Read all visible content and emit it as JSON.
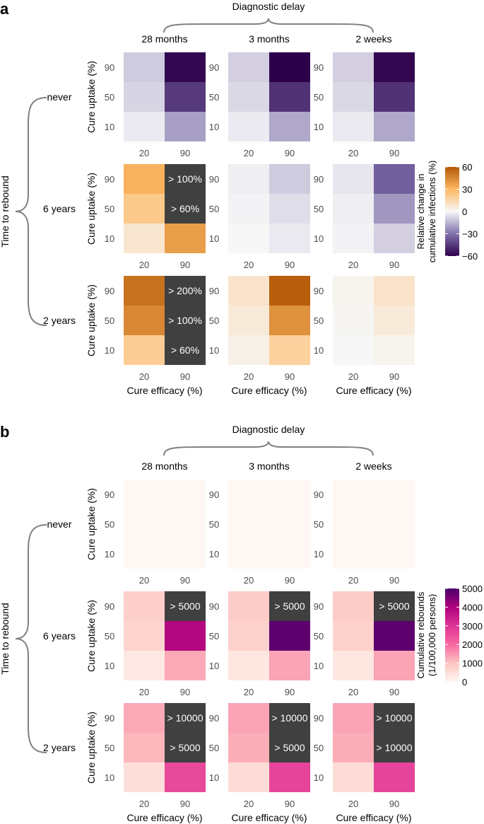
{
  "chart_data": [
    {
      "type": "heatmap",
      "panel": "a",
      "title": "Diagnostic delay",
      "row_facet_title": "Time to rebound",
      "column_facets": [
        "28 months",
        "3 months",
        "2 weeks"
      ],
      "row_facets": [
        "never",
        "6 years",
        "2 years"
      ],
      "xlabel": "Cure efficacy (%)",
      "ylabel": "Cure uptake (%)",
      "x_categories": [
        "20",
        "90"
      ],
      "y_categories": [
        "90",
        "50",
        "10"
      ],
      "legend": {
        "title_lines": [
          "Relative change in",
          "cumulative infections (%)"
        ],
        "ticks": [
          "60",
          "30",
          "0",
          "−30",
          "−60"
        ],
        "range": [
          -60,
          60
        ],
        "scale": "diverging orange-white-purple"
      },
      "color_stops": [
        {
          "value": -60,
          "color": "#2d004b"
        },
        {
          "value": -30,
          "color": "#8073ac"
        },
        {
          "value": 0,
          "color": "#f7f7f7"
        },
        {
          "value": 30,
          "color": "#fdb863"
        },
        {
          "value": 60,
          "color": "#b35806"
        }
      ],
      "overflow_color": "#404040",
      "facets": [
        {
          "row": 0,
          "col": 0,
          "values": [
            [
              -10,
              -58
            ],
            [
              -8,
              -45
            ],
            [
              -3,
              -20
            ]
          ],
          "labels": [
            [
              "",
              ""
            ],
            [
              "",
              ""
            ],
            [
              "",
              ""
            ]
          ]
        },
        {
          "row": 0,
          "col": 1,
          "values": [
            [
              -9,
              -60
            ],
            [
              -7,
              -47
            ],
            [
              -3,
              -18
            ]
          ],
          "labels": [
            [
              "",
              ""
            ],
            [
              "",
              ""
            ],
            [
              "",
              ""
            ]
          ]
        },
        {
          "row": 0,
          "col": 2,
          "values": [
            [
              -9,
              -58
            ],
            [
              -7,
              -47
            ],
            [
              -3,
              -18
            ]
          ],
          "labels": [
            [
              "",
              ""
            ],
            [
              "",
              ""
            ],
            [
              "",
              ""
            ]
          ]
        },
        {
          "row": 1,
          "col": 0,
          "values": [
            [
              32,
              null
            ],
            [
              22,
              null
            ],
            [
              8,
              38
            ]
          ],
          "labels": [
            [
              "",
              "> 100%"
            ],
            [
              "",
              "> 60%"
            ],
            [
              "",
              ""
            ]
          ]
        },
        {
          "row": 1,
          "col": 1,
          "values": [
            [
              -2,
              -10
            ],
            [
              -1,
              -6
            ],
            [
              0,
              -3
            ]
          ],
          "labels": [
            [
              "",
              ""
            ],
            [
              "",
              ""
            ],
            [
              "",
              ""
            ]
          ]
        },
        {
          "row": 1,
          "col": 2,
          "values": [
            [
              -4,
              -35
            ],
            [
              -2,
              -22
            ],
            [
              -1,
              -9
            ]
          ],
          "labels": [
            [
              "",
              ""
            ],
            [
              "",
              ""
            ],
            [
              "",
              ""
            ]
          ]
        },
        {
          "row": 2,
          "col": 0,
          "values": [
            [
              52,
              null
            ],
            [
              45,
              null
            ],
            [
              20,
              null
            ]
          ],
          "labels": [
            [
              "",
              "> 200%"
            ],
            [
              "",
              "> 100%"
            ],
            [
              "",
              "> 60%"
            ]
          ]
        },
        {
          "row": 2,
          "col": 1,
          "values": [
            [
              9,
              58
            ],
            [
              6,
              42
            ],
            [
              3,
              18
            ]
          ],
          "labels": [
            [
              "",
              ""
            ],
            [
              "",
              ""
            ],
            [
              "",
              ""
            ]
          ]
        },
        {
          "row": 2,
          "col": 2,
          "values": [
            [
              2,
              9
            ],
            [
              1,
              6
            ],
            [
              0,
              2
            ]
          ],
          "labels": [
            [
              "",
              ""
            ],
            [
              "",
              ""
            ],
            [
              "",
              ""
            ]
          ]
        }
      ]
    },
    {
      "type": "heatmap",
      "panel": "b",
      "title": "Diagnostic delay",
      "row_facet_title": "Time to rebound",
      "column_facets": [
        "28 months",
        "3 months",
        "2 weeks"
      ],
      "row_facets": [
        "never",
        "6 years",
        "2 years"
      ],
      "xlabel": "Cure efficacy (%)",
      "ylabel": "Cure uptake (%)",
      "x_categories": [
        "20",
        "90"
      ],
      "y_categories": [
        "90",
        "50",
        "10"
      ],
      "legend": {
        "title_lines": [
          "Cumulative rebounds",
          "(1/100,000 persons)"
        ],
        "ticks": [
          "5000",
          "4000",
          "3000",
          "2000",
          "1000",
          "0"
        ],
        "range": [
          0,
          5000
        ],
        "scale": "sequential pink-purple"
      },
      "color_stops": [
        {
          "value": 0,
          "color": "#fff7f3"
        },
        {
          "value": 1000,
          "color": "#fcc5c0"
        },
        {
          "value": 2000,
          "color": "#f768a1"
        },
        {
          "value": 3000,
          "color": "#dd3497"
        },
        {
          "value": 4000,
          "color": "#ae017e"
        },
        {
          "value": 5000,
          "color": "#49006a"
        }
      ],
      "overflow_color": "#404040",
      "facets": [
        {
          "row": 0,
          "col": 0,
          "values": [
            [
              0,
              0
            ],
            [
              0,
              0
            ],
            [
              0,
              0
            ]
          ],
          "labels": [
            [
              "",
              ""
            ],
            [
              "",
              ""
            ],
            [
              "",
              ""
            ]
          ]
        },
        {
          "row": 0,
          "col": 1,
          "values": [
            [
              0,
              0
            ],
            [
              0,
              0
            ],
            [
              0,
              0
            ]
          ],
          "labels": [
            [
              "",
              ""
            ],
            [
              "",
              ""
            ],
            [
              "",
              ""
            ]
          ]
        },
        {
          "row": 0,
          "col": 2,
          "values": [
            [
              0,
              0
            ],
            [
              0,
              0
            ],
            [
              0,
              0
            ]
          ],
          "labels": [
            [
              "",
              ""
            ],
            [
              "",
              ""
            ],
            [
              "",
              ""
            ]
          ]
        },
        {
          "row": 1,
          "col": 0,
          "values": [
            [
              800,
              null
            ],
            [
              700,
              3900
            ],
            [
              300,
              1300
            ]
          ],
          "labels": [
            [
              "",
              "> 5000"
            ],
            [
              "",
              ""
            ],
            [
              "",
              ""
            ]
          ]
        },
        {
          "row": 1,
          "col": 1,
          "values": [
            [
              850,
              null
            ],
            [
              750,
              4800
            ],
            [
              350,
              1350
            ]
          ],
          "labels": [
            [
              "",
              "> 5000"
            ],
            [
              "",
              ""
            ],
            [
              "",
              ""
            ]
          ]
        },
        {
          "row": 1,
          "col": 2,
          "values": [
            [
              850,
              null
            ],
            [
              750,
              4800
            ],
            [
              350,
              1350
            ]
          ],
          "labels": [
            [
              "",
              "> 5000"
            ],
            [
              "",
              ""
            ],
            [
              "",
              ""
            ]
          ]
        },
        {
          "row": 2,
          "col": 0,
          "values": [
            [
              1300,
              null
            ],
            [
              1150,
              null
            ],
            [
              500,
              2600
            ]
          ],
          "labels": [
            [
              "",
              "> 10000"
            ],
            [
              "",
              "> 5000"
            ],
            [
              "",
              ""
            ]
          ]
        },
        {
          "row": 2,
          "col": 1,
          "values": [
            [
              1350,
              null
            ],
            [
              1250,
              null
            ],
            [
              550,
              2700
            ]
          ],
          "labels": [
            [
              "",
              "> 10000"
            ],
            [
              "",
              "> 5000"
            ],
            [
              "",
              ""
            ]
          ]
        },
        {
          "row": 2,
          "col": 2,
          "values": [
            [
              1350,
              null
            ],
            [
              1250,
              null
            ],
            [
              550,
              2700
            ]
          ],
          "labels": [
            [
              "",
              "> 10000"
            ],
            [
              "",
              "> 10000"
            ],
            [
              "",
              ""
            ]
          ]
        }
      ]
    }
  ]
}
